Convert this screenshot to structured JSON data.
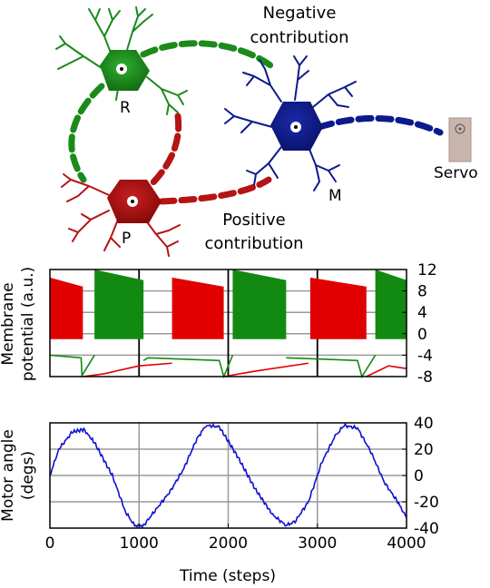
{
  "diagram": {
    "neuron_R": {
      "label": "R",
      "color": "#1b8a1b"
    },
    "neuron_P": {
      "label": "P",
      "color": "#b41414"
    },
    "neuron_M": {
      "label": "M",
      "color": "#0c1a8c"
    },
    "servo": {
      "label": "Servo",
      "color": "#c9b5ac"
    },
    "negative_label": [
      "Negative",
      "contribution"
    ],
    "positive_label": [
      "Positive",
      "contribution"
    ]
  },
  "chart_data": [
    {
      "type": "line",
      "ylabel": [
        "Membrane",
        "potential (a.u.)"
      ],
      "xlim": [
        0,
        4000
      ],
      "ylim": [
        -8,
        12
      ],
      "yticks": [
        -8,
        -4,
        0,
        4,
        8,
        12
      ],
      "vgrid": [
        1000,
        2000,
        3000
      ],
      "grid": true,
      "series": [
        {
          "color": "#e00000",
          "note": "P membrane",
          "bursts": [
            [
              0,
              370
            ],
            [
              1370,
              1950
            ],
            [
              2920,
              3550
            ]
          ],
          "reset_dips": [
            370,
            1950,
            3550
          ]
        },
        {
          "color": "#128a12",
          "note": "R membrane",
          "bursts": [
            [
              500,
              1050
            ],
            [
              2050,
              2650
            ],
            [
              3650,
              4000
            ]
          ],
          "reset_dips": [
            350,
            1950,
            3500
          ]
        }
      ]
    },
    {
      "type": "line",
      "xlabel": "Time (steps)",
      "ylabel": [
        "Motor angle",
        "(degs)"
      ],
      "xlim": [
        0,
        4000
      ],
      "ylim": [
        -40,
        40
      ],
      "xticks": [
        0,
        1000,
        2000,
        3000,
        4000
      ],
      "yticks": [
        -40,
        -20,
        0,
        20,
        40
      ],
      "grid": true,
      "series": [
        {
          "color": "#1010d0",
          "x": [
            0,
            100,
            250,
            380,
            500,
            700,
            850,
            950,
            1050,
            1200,
            1350,
            1500,
            1650,
            1750,
            1900,
            2100,
            2300,
            2500,
            2650,
            2750,
            2900,
            3050,
            3200,
            3300,
            3450,
            3600,
            3750,
            3900,
            4000
          ],
          "y": [
            0,
            20,
            33,
            35,
            25,
            0,
            -28,
            -38,
            -38,
            -25,
            -12,
            5,
            28,
            38,
            37,
            15,
            -10,
            -30,
            -38,
            -35,
            -20,
            10,
            30,
            38,
            36,
            18,
            -5,
            -20,
            -32
          ]
        }
      ]
    }
  ]
}
